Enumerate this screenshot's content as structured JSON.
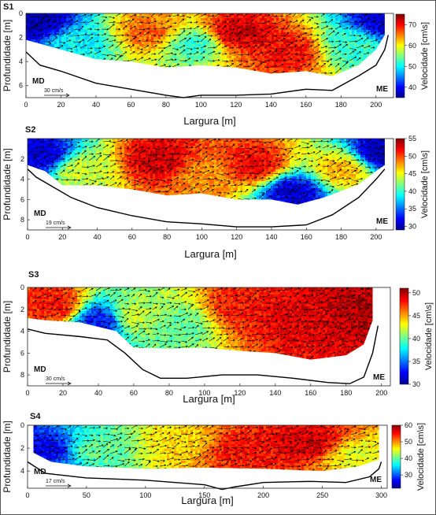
{
  "colors": {
    "colormap": [
      "#00008f",
      "#0000ff",
      "#0080ff",
      "#00ffff",
      "#80ff80",
      "#ffff00",
      "#ff8000",
      "#ff0000",
      "#800000"
    ],
    "bed_line": "#000000",
    "arrow": "#000000"
  },
  "chart_data": [
    {
      "type": "heatmap",
      "panel_label": "S1",
      "xlabel": "Largura [m]",
      "ylabel": "Profundidade [m]",
      "colorbar_label": "Velocidade [cm\\s]",
      "xlim": [
        0,
        210
      ],
      "ylim": [
        0,
        7
      ],
      "y_inverted": true,
      "x_ticks": [
        0,
        20,
        40,
        60,
        80,
        100,
        120,
        140,
        160,
        180,
        200
      ],
      "y_ticks": [
        0,
        2,
        4,
        6
      ],
      "clim": [
        35,
        75
      ],
      "cbar_ticks": [
        40,
        50,
        60,
        70
      ],
      "left_bank": "MD",
      "right_bank": "ME",
      "scale_label": "30 cm/s",
      "bed_profile": {
        "x": [
          0,
          8,
          20,
          40,
          60,
          80,
          90,
          100,
          120,
          140,
          160,
          175,
          190,
          200,
          205,
          207
        ],
        "y": [
          3.2,
          4.3,
          4.8,
          5.8,
          6.3,
          6.8,
          7.0,
          6.8,
          6.8,
          6.7,
          6.3,
          6.4,
          5.2,
          4.3,
          3.0,
          1.8
        ]
      },
      "data_bottom": {
        "x": [
          0,
          20,
          40,
          60,
          80,
          100,
          120,
          140,
          160,
          175,
          190,
          200,
          205
        ],
        "y": [
          2.2,
          3.0,
          3.8,
          4.0,
          4.5,
          4.3,
          4.5,
          5.0,
          4.8,
          5.2,
          4.3,
          3.0,
          1.8
        ]
      },
      "velocity_hotspots": [
        {
          "x": 5,
          "y": 0.5,
          "v": 36
        },
        {
          "x": 30,
          "y": 2.5,
          "v": 50
        },
        {
          "x": 70,
          "y": 1.5,
          "v": 66
        },
        {
          "x": 95,
          "y": 2.5,
          "v": 52
        },
        {
          "x": 120,
          "y": 1.5,
          "v": 72
        },
        {
          "x": 150,
          "y": 3.0,
          "v": 70
        },
        {
          "x": 185,
          "y": 2.5,
          "v": 52
        },
        {
          "x": 203,
          "y": 0.5,
          "v": 38
        }
      ]
    },
    {
      "type": "heatmap",
      "panel_label": "S2",
      "xlabel": "Largura [m]",
      "ylabel": "Profundidade [m]",
      "colorbar_label": "Velocidade [cm\\s]",
      "xlim": [
        0,
        210
      ],
      "ylim": [
        0,
        9
      ],
      "y_inverted": true,
      "x_ticks": [
        0,
        20,
        40,
        60,
        80,
        100,
        120,
        140,
        160,
        180,
        200
      ],
      "y_ticks": [
        2,
        4,
        6,
        8
      ],
      "clim": [
        29,
        55
      ],
      "cbar_ticks": [
        30,
        35,
        40,
        45,
        50,
        55
      ],
      "left_bank": "MD",
      "right_bank": "ME",
      "scale_label": "19 cm/s",
      "bed_profile": {
        "x": [
          0,
          5,
          15,
          25,
          40,
          60,
          80,
          100,
          120,
          140,
          160,
          175,
          190,
          200,
          205
        ],
        "y": [
          3.0,
          3.8,
          4.8,
          5.8,
          6.8,
          7.6,
          8.2,
          8.4,
          8.7,
          8.7,
          8.5,
          7.5,
          5.8,
          4.0,
          3.0
        ]
      },
      "data_bottom": {
        "x": [
          0,
          10,
          20,
          40,
          60,
          80,
          100,
          120,
          140,
          155,
          170,
          190,
          200,
          205
        ],
        "y": [
          2.6,
          3.2,
          4.6,
          4.6,
          5.0,
          5.6,
          5.4,
          6.0,
          6.0,
          6.5,
          5.8,
          4.5,
          3.2,
          2.6
        ]
      },
      "velocity_hotspots": [
        {
          "x": 8,
          "y": 1.5,
          "v": 31
        },
        {
          "x": 30,
          "y": 3.0,
          "v": 44
        },
        {
          "x": 75,
          "y": 2.0,
          "v": 53
        },
        {
          "x": 100,
          "y": 3.5,
          "v": 48
        },
        {
          "x": 130,
          "y": 2.5,
          "v": 52
        },
        {
          "x": 152,
          "y": 5.2,
          "v": 31
        },
        {
          "x": 180,
          "y": 3.0,
          "v": 47
        },
        {
          "x": 203,
          "y": 1.2,
          "v": 30
        }
      ]
    },
    {
      "type": "heatmap",
      "panel_label": "S3",
      "xlabel": "Largura [m]",
      "ylabel": "Profundidade [m]",
      "colorbar_label": "Velocidade [cm\\s]",
      "xlim": [
        0,
        205
      ],
      "ylim": [
        0,
        9
      ],
      "y_inverted": true,
      "x_ticks": [
        0,
        20,
        40,
        60,
        80,
        100,
        120,
        140,
        160,
        180,
        200
      ],
      "y_ticks": [
        0,
        2,
        4,
        6,
        8
      ],
      "clim": [
        30,
        51
      ],
      "cbar_ticks": [
        30,
        35,
        40,
        45,
        50
      ],
      "left_bank": "MD",
      "right_bank": "ME",
      "scale_label": "30 cm/s",
      "bed_profile": {
        "x": [
          0,
          10,
          30,
          45,
          55,
          65,
          75,
          90,
          110,
          130,
          150,
          170,
          182,
          190,
          195,
          198
        ],
        "y": [
          3.8,
          4.2,
          4.5,
          4.8,
          6.0,
          7.5,
          8.3,
          8.3,
          8.0,
          8.0,
          8.3,
          8.7,
          8.8,
          8.2,
          6.0,
          3.5
        ]
      },
      "data_bottom": {
        "x": [
          0,
          10,
          30,
          50,
          60,
          80,
          100,
          120,
          140,
          160,
          180,
          190,
          195
        ],
        "y": [
          2.8,
          3.0,
          3.2,
          4.0,
          5.5,
          5.6,
          5.5,
          5.8,
          6.0,
          6.6,
          6.2,
          5.2,
          3.0
        ]
      },
      "velocity_hotspots": [
        {
          "x": 15,
          "y": 1.5,
          "v": 48
        },
        {
          "x": 60,
          "y": 2.5,
          "v": 42
        },
        {
          "x": 85,
          "y": 3.5,
          "v": 40
        },
        {
          "x": 120,
          "y": 1.5,
          "v": 48
        },
        {
          "x": 150,
          "y": 2.5,
          "v": 49
        },
        {
          "x": 190,
          "y": 1.5,
          "v": 50
        },
        {
          "x": 40,
          "y": 3.0,
          "v": 33
        }
      ]
    },
    {
      "type": "heatmap",
      "panel_label": "S4",
      "xlabel": "Largura [m]",
      "ylabel": "Profundidade [m]",
      "colorbar_label": "Velocidade [cm\\s]",
      "xlim": [
        0,
        305
      ],
      "ylim": [
        0,
        5.5
      ],
      "y_inverted": true,
      "x_ticks": [
        0,
        50,
        100,
        150,
        200,
        250,
        300
      ],
      "y_ticks": [
        0,
        2,
        4
      ],
      "clim": [
        22,
        60
      ],
      "cbar_ticks": [
        30,
        40,
        50,
        60
      ],
      "left_bank": "MD",
      "right_bank": "ME",
      "scale_label": "17 cm/s",
      "bed_profile": {
        "x": [
          0,
          15,
          50,
          100,
          150,
          165,
          175,
          200,
          240,
          270,
          290,
          298,
          300
        ],
        "y": [
          3.2,
          4.2,
          4.6,
          4.8,
          5.2,
          5.6,
          5.4,
          5.0,
          4.9,
          5.0,
          4.5,
          3.8,
          3.2
        ]
      },
      "data_bottom": {
        "x": [
          5,
          20,
          50,
          100,
          150,
          200,
          250,
          280,
          298
        ],
        "y": [
          2.4,
          3.2,
          3.6,
          3.8,
          3.7,
          3.8,
          4.0,
          3.6,
          3.0
        ]
      },
      "velocity_hotspots": [
        {
          "x": 12,
          "y": 2.0,
          "v": 26
        },
        {
          "x": 60,
          "y": 2.0,
          "v": 40
        },
        {
          "x": 130,
          "y": 1.5,
          "v": 47
        },
        {
          "x": 180,
          "y": 2.0,
          "v": 55
        },
        {
          "x": 235,
          "y": 1.5,
          "v": 57
        },
        {
          "x": 280,
          "y": 2.5,
          "v": 45
        }
      ]
    }
  ]
}
